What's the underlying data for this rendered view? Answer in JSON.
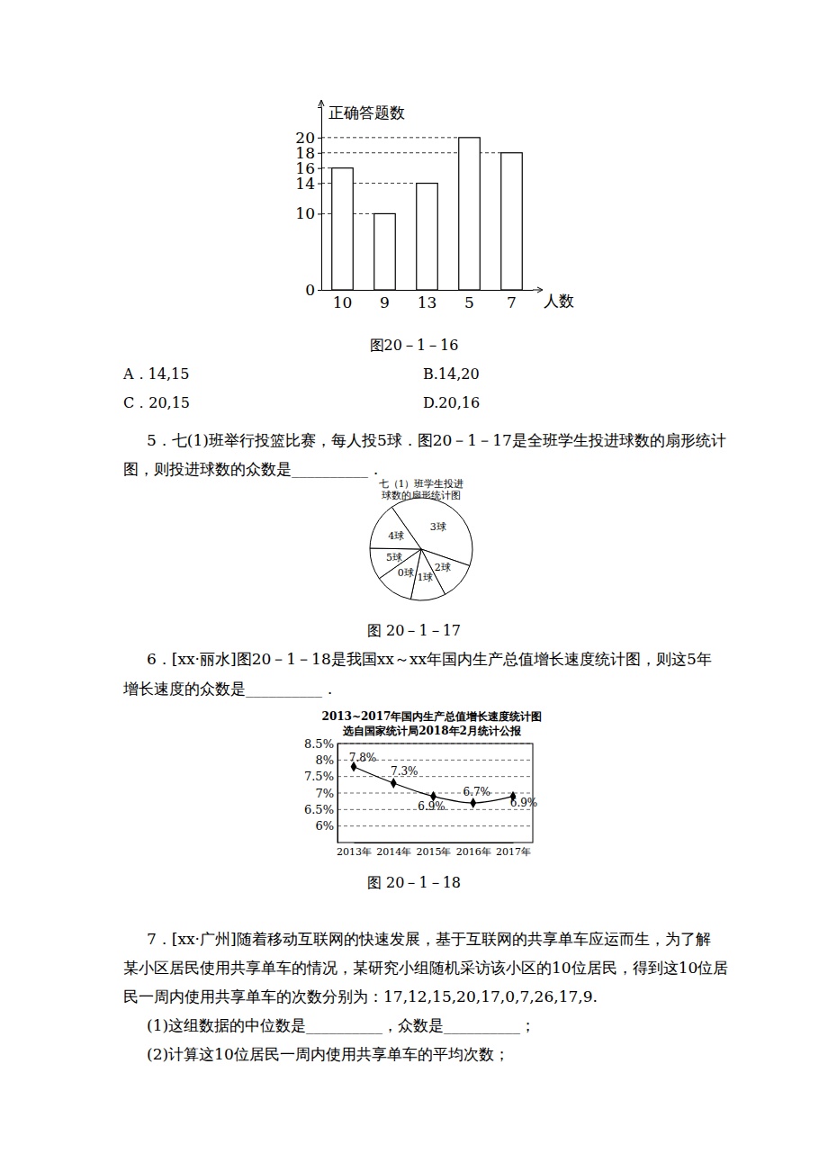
{
  "chart_data": [
    {
      "type": "bar",
      "categories": [
        "10",
        "9",
        "13",
        "5",
        "7"
      ],
      "values": [
        16,
        10,
        14,
        20,
        18
      ],
      "x_label": "人数",
      "y_label": "正确答题数",
      "ylim": [
        0,
        24
      ],
      "yticks": [
        0,
        10,
        14,
        16,
        18,
        20
      ],
      "color": "#ffffff",
      "grid": true
    },
    {
      "type": "pie",
      "title": [
        "七（1）班学生投进",
        "球数的扇形统计图"
      ],
      "categories": [
        "3球",
        "2球",
        "1球",
        "0球",
        "5球",
        "4球"
      ],
      "values": [
        40,
        12,
        11,
        12,
        10,
        15
      ],
      "color": "#ffffff"
    },
    {
      "type": "line",
      "title": "2013~2017年国内生产总值增长速度统计图",
      "subtitle": "选自国家统计局2018年2月统计公报",
      "categories": [
        "2013年",
        "2014年",
        "2015年",
        "2016年",
        "2017年"
      ],
      "values": [
        7.8,
        7.3,
        6.9,
        6.7,
        6.9
      ],
      "value_labels": [
        "7.8%",
        "7.3%",
        "6.9%",
        "6.7%",
        "6.9%"
      ],
      "data_labels": true,
      "ylim": [
        5.5,
        8.5
      ],
      "yticks": [
        {
          "value": 6,
          "label": "6%"
        },
        {
          "value": 6.5,
          "label": "6.5%"
        },
        {
          "value": 7,
          "label": "7%"
        },
        {
          "value": 7.5,
          "label": "7.5%"
        },
        {
          "value": 8,
          "label": "8%"
        },
        {
          "value": 8.5,
          "label": "8.5%"
        }
      ],
      "grid": true,
      "marker": "diamond",
      "color": "#000000"
    }
  ],
  "document": {
    "figure_captions": [
      "图20－1－16",
      "图 20－1－17",
      "图 20－1－18"
    ],
    "q4_options": [
      "A．14,15",
      "B.14,20",
      "C．20,15",
      "D.20,16"
    ],
    "q5": [
      "5．七(1)班举行投篮比赛，每人投5球．图20－1－17是全班学生投进球数的扇形统计",
      "图，则投进球数的众数是__________．"
    ],
    "q6": [
      "6．[xx·丽水]图20－1－18是我国xx～xx年国内生产总值增长速度统计图，则这5年",
      "增长速度的众数是__________．"
    ],
    "q7": [
      "7．[xx·广州]随着移动互联网的快速发展，基于互联网的共享单车应运而生，为了解",
      "某小区居民使用共享单车的情况，某研究小组随机采访该小区的10位居民，得到这10位居",
      "民一周内使用共享单车的次数分别为：17,12,15,20,17,0,7,26,17,9.",
      "(1)这组数据的中位数是__________，众数是__________；",
      "(2)计算这10位居民一周内使用共享单车的平均次数；"
    ]
  }
}
